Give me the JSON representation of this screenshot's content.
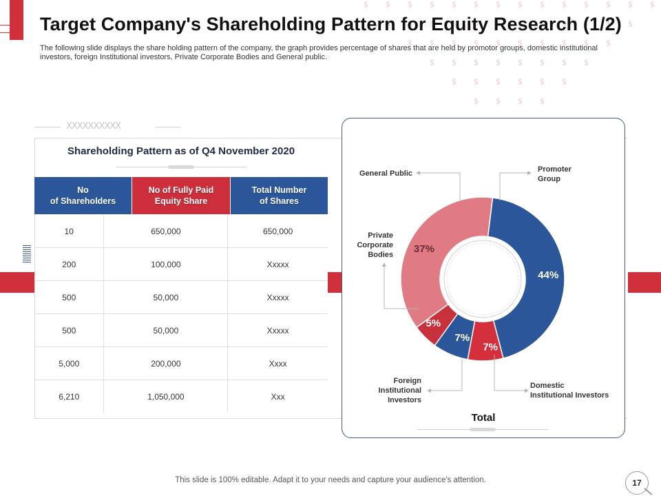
{
  "slide": {
    "title": "Target Company's Shareholding Pattern for Equity Research (1/2)",
    "subtitle": "The following slide displays the share holding pattern of the company, the graph provides percentage of shares that are held by promotor groups, domestic institutional investors, foreign Institutional investors, Private Corporate Bodies and General public.",
    "deco_text": "XXXXXXXXXX",
    "footer": "This slide is 100% editable. Adapt it to your needs and capture your audience's attention.",
    "page_number": "17"
  },
  "table": {
    "title": "Shareholding Pattern as of Q4 November 2020",
    "headers": [
      {
        "line1": "No",
        "line2": "of Shareholders",
        "color": "#2b579a"
      },
      {
        "line1": "No of Fully Paid",
        "line2": "Equity Share",
        "color": "#cc2e3b"
      },
      {
        "line1": "Total Number",
        "line2": "of Shares",
        "color": "#2b579a"
      }
    ],
    "rows": [
      [
        "10",
        "650,000",
        "650,000"
      ],
      [
        "200",
        "100,000",
        "Xxxxx"
      ],
      [
        "500",
        "50,000",
        "Xxxxx"
      ],
      [
        "500",
        "50,000",
        "Xxxxx"
      ],
      [
        "5,000",
        "200,000",
        "Xxxx"
      ],
      [
        "6,210",
        "1,050,000",
        "Xxx"
      ]
    ]
  },
  "chart_data": {
    "type": "pie",
    "title": "Total",
    "categories": [
      "Promoter Group",
      "Domestic Institutional Investors",
      "Foreign Institutional Investors",
      "Private Corporate Bodies",
      "General Public"
    ],
    "values": [
      44,
      7,
      7,
      5,
      37
    ],
    "data_labels": [
      "44%",
      "7%",
      "7%",
      "5%",
      "37%"
    ],
    "colors": [
      "#2b579a",
      "#d32f3c",
      "#2b579a",
      "#c8303c",
      "#e07b84"
    ],
    "callouts": {
      "general_public": "General Public",
      "promoter_line1": "Promoter",
      "promoter_line2": "Group",
      "pcb_line1": "Private",
      "pcb_line2": "Corporate",
      "pcb_line3": "Bodies",
      "fii_line1": "Foreign",
      "fii_line2": "Institutional",
      "fii_line3": "Investors",
      "dii_line1": "Domestic",
      "dii_line2": "Institutional Investors"
    }
  }
}
